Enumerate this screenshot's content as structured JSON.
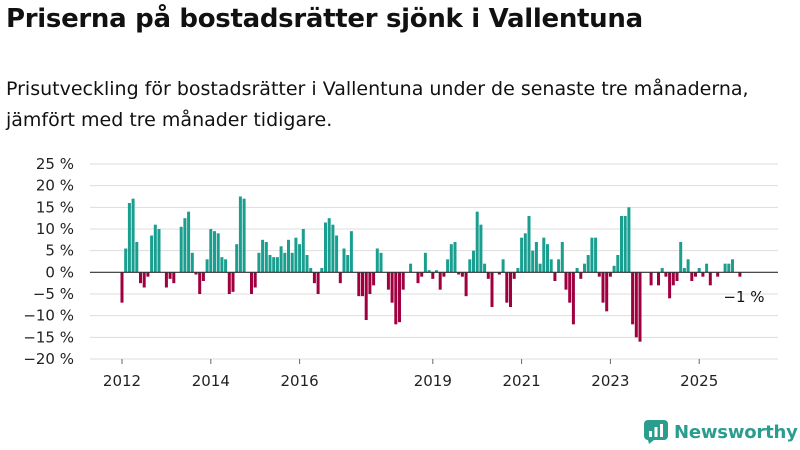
{
  "header": {
    "title": "Priserna på bostadsrätter sjönk i Vallentuna",
    "subtitle": "Prisutveckling för bostadsrätter i Vallentuna under de senaste tre månaderna, jämfört med tre månader tidigare."
  },
  "brand": {
    "name": "Newsworthy",
    "color": "#2a9d8f"
  },
  "chart_data": {
    "type": "bar",
    "title": "",
    "xlabel": "",
    "ylabel": "",
    "ylim": [
      -20,
      25
    ],
    "y_ticks": [
      25,
      20,
      15,
      10,
      5,
      0,
      -5,
      -10,
      -15,
      -20
    ],
    "y_tick_labels": [
      "25 %",
      "20 %",
      "15 %",
      "10 %",
      "5 %",
      "0 %",
      "−5 %",
      "−10 %",
      "−15 %",
      "−20 %"
    ],
    "x_tick_labels": [
      {
        "year": "2012",
        "index": 0
      },
      {
        "year": "2014",
        "index": 24
      },
      {
        "year": "2016",
        "index": 48
      },
      {
        "year": "2019",
        "index": 84
      },
      {
        "year": "2021",
        "index": 108
      },
      {
        "year": "2023",
        "index": 132
      },
      {
        "year": "2025",
        "index": 156
      }
    ],
    "start": "2012-01",
    "frequency": "monthly",
    "positive_color": "#1a9e8f",
    "negative_color": "#a0003f",
    "grid": true,
    "annotation": {
      "text": "−1 %",
      "index": 163
    },
    "values": [
      -7,
      5.5,
      16,
      17,
      7,
      -2.5,
      -3.5,
      -1,
      8.5,
      11,
      10,
      0,
      -3.5,
      -1.5,
      -2.5,
      0,
      10.5,
      12.5,
      14,
      4.5,
      -0.5,
      -5,
      -2,
      3,
      10,
      9.5,
      9,
      3.5,
      3,
      -5,
      -4.5,
      6.5,
      17.5,
      17,
      0,
      -5,
      -3.5,
      4.5,
      7.5,
      7,
      4,
      3.5,
      3.5,
      6,
      4.5,
      7.5,
      4.5,
      8,
      6.5,
      10,
      4,
      1,
      -2.5,
      -5,
      1,
      11.5,
      12.5,
      11,
      8.5,
      -2.5,
      5.5,
      4,
      9.5,
      0,
      -5.5,
      -5.5,
      -11,
      -5,
      -3,
      5.5,
      4.5,
      0,
      -4,
      -7,
      -12,
      -11.5,
      -4,
      0,
      2,
      0,
      -2.5,
      -1,
      4.5,
      0.5,
      -1.5,
      0.5,
      -4,
      -1,
      3,
      6.5,
      7,
      -0.5,
      -1,
      -5.5,
      3,
      5,
      14,
      11,
      2,
      -1.5,
      -8,
      0,
      -0.5,
      3,
      -7,
      -8,
      -1.5,
      1,
      8,
      9,
      13,
      5,
      7,
      2,
      8,
      6.5,
      3,
      -2,
      3,
      7,
      -4,
      -7,
      -12,
      1,
      -1.5,
      2,
      4,
      8,
      8,
      -1,
      -7,
      -9,
      -1,
      1.5,
      4,
      13,
      13,
      15,
      -12,
      -15,
      -16,
      0,
      0,
      -3,
      0,
      -3,
      1,
      -1,
      -6,
      -3,
      -2,
      7,
      1,
      3,
      -2,
      -1,
      1,
      -1,
      2,
      -3,
      0,
      -1,
      0,
      2,
      2,
      3,
      0,
      -1
    ]
  }
}
